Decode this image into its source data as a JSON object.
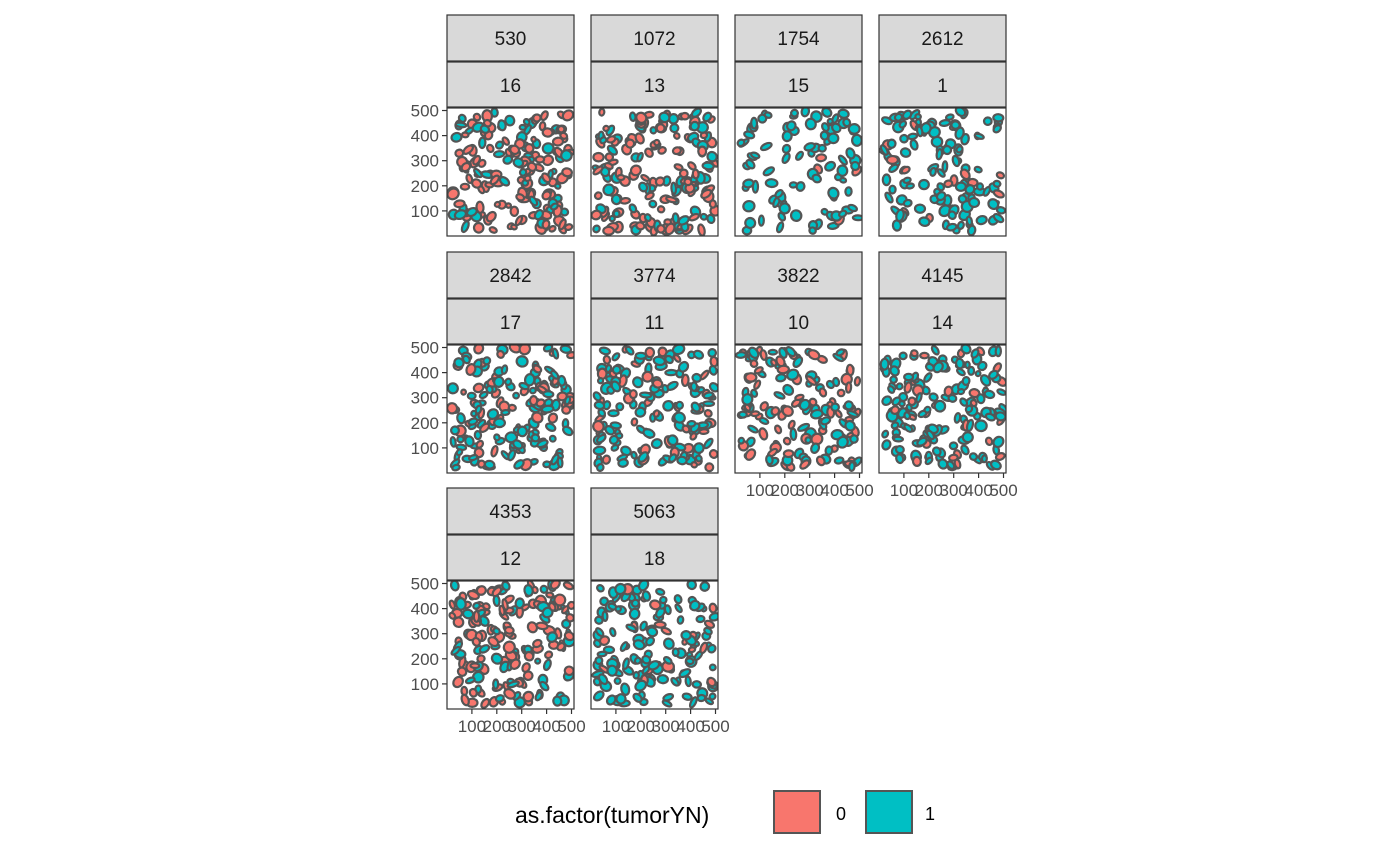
{
  "chart_data": {
    "type": "scatter",
    "description_kind": "faceted cell-segmentation plot",
    "facet_rows": [
      "sample",
      "roi"
    ],
    "panels": [
      {
        "sample": "530",
        "roi": "16",
        "tumor_share": 0.35,
        "density": 1.0,
        "show_x_axis": false
      },
      {
        "sample": "1072",
        "roi": "13",
        "tumor_share": 0.3,
        "density": 1.0,
        "show_x_axis": false
      },
      {
        "sample": "1754",
        "roi": "15",
        "tumor_share": 0.95,
        "density": 0.55,
        "show_x_axis": false
      },
      {
        "sample": "2612",
        "roi": "1",
        "tumor_share": 0.88,
        "density": 0.75,
        "show_x_axis": false
      },
      {
        "sample": "2842",
        "roi": "17",
        "tumor_share": 0.7,
        "density": 1.0,
        "show_x_axis": false
      },
      {
        "sample": "3774",
        "roi": "11",
        "tumor_share": 0.75,
        "density": 0.95,
        "show_x_axis": false
      },
      {
        "sample": "3822",
        "roi": "10",
        "tumor_share": 0.45,
        "density": 0.85,
        "show_x_axis": true
      },
      {
        "sample": "4145",
        "roi": "14",
        "tumor_share": 0.85,
        "density": 1.0,
        "show_x_axis": true
      },
      {
        "sample": "4353",
        "roi": "12",
        "tumor_share": 0.4,
        "density": 1.0,
        "show_x_axis": true
      },
      {
        "sample": "5063",
        "roi": "18",
        "tumor_share": 0.85,
        "density": 0.9,
        "show_x_axis": true
      }
    ],
    "x_ticks": [
      "100",
      "200",
      "300",
      "400",
      "500"
    ],
    "y_ticks": [
      "100",
      "200",
      "300",
      "400",
      "500"
    ],
    "xlim": [
      0,
      510
    ],
    "ylim": [
      0,
      510
    ],
    "legend": {
      "title": "as.factor(tumorYN)",
      "position": "bottom",
      "entries": [
        {
          "label": "0",
          "color": "#F8766D"
        },
        {
          "label": "1",
          "color": "#00BFC4"
        }
      ]
    },
    "outline_color": "#555555",
    "strip_fill": "#d9d9d9"
  }
}
